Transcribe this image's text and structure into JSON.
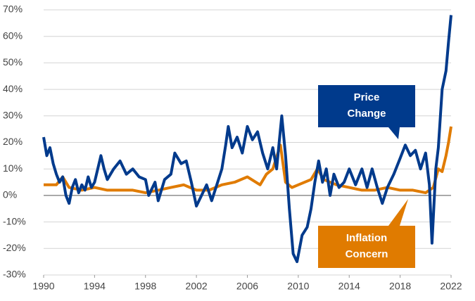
{
  "chart_data": {
    "type": "line",
    "xlim": [
      1990,
      2022
    ],
    "xticks": [
      1990,
      1994,
      1998,
      2002,
      2006,
      2010,
      2014,
      2018,
      2022
    ],
    "ylim": [
      -30,
      70
    ],
    "yticks": [
      {
        "value": -30,
        "label": "-30%"
      },
      {
        "value": -20,
        "label": "-20%"
      },
      {
        "value": -10,
        "label": "-10%"
      },
      {
        "value": 0,
        "label": "0%"
      },
      {
        "value": 10,
        "label": "10%"
      },
      {
        "value": 20,
        "label": "20%"
      },
      {
        "value": 30,
        "label": "30%"
      },
      {
        "value": 40,
        "label": "40%"
      },
      {
        "value": 50,
        "label": "50%"
      },
      {
        "value": 60,
        "label": "60%"
      },
      {
        "value": 70,
        "label": "70%"
      }
    ],
    "grid": true,
    "series": [
      {
        "name": "Inflation Concern",
        "color": "#e07b00",
        "x": [
          1990,
          1991,
          1991.5,
          1992,
          1993,
          1994,
          1995,
          1996,
          1997,
          1998,
          1999,
          2000,
          2001,
          2002,
          2003,
          2004,
          2005,
          2006,
          2007,
          2007.5,
          2008,
          2008.6,
          2009,
          2009.5,
          2010,
          2011,
          2011.5,
          2012,
          2013,
          2014,
          2015,
          2016,
          2017,
          2018,
          2019,
          2020,
          2020.6,
          2021,
          2021.3,
          2021.6,
          2021.8,
          2022
        ],
        "values": [
          4,
          4,
          7,
          3,
          2,
          3,
          2,
          2,
          2,
          1,
          2,
          3,
          4,
          2,
          2,
          4,
          5,
          7,
          4,
          8,
          10,
          19,
          5,
          3,
          4,
          6,
          10,
          6,
          4,
          3,
          2,
          2,
          3,
          2,
          2,
          1,
          3,
          10,
          9,
          15,
          20,
          26
        ]
      },
      {
        "name": "Price Change",
        "color": "#003a8c",
        "x": [
          1990,
          1990.25,
          1990.5,
          1990.75,
          1991,
          1991.25,
          1991.5,
          1991.75,
          1992,
          1992.25,
          1992.5,
          1992.75,
          1993,
          1993.25,
          1993.5,
          1993.75,
          1994,
          1994.5,
          1994.75,
          1995,
          1995.5,
          1996,
          1996.5,
          1997,
          1997.5,
          1998,
          1998.25,
          1998.75,
          1999,
          1999.5,
          2000,
          2000.3,
          2000.8,
          2001.2,
          2001.6,
          2002,
          2002.4,
          2002.8,
          2003.2,
          2003.6,
          2004,
          2004.3,
          2004.5,
          2004.8,
          2005.2,
          2005.6,
          2006,
          2006.4,
          2006.8,
          2007.2,
          2007.6,
          2008,
          2008.3,
          2008.5,
          2008.7,
          2009,
          2009.3,
          2009.6,
          2009.9,
          2010.3,
          2010.7,
          2011,
          2011.3,
          2011.6,
          2011.9,
          2012.2,
          2012.5,
          2012.8,
          2013.2,
          2013.6,
          2014,
          2014.5,
          2015,
          2015.4,
          2015.8,
          2016.2,
          2016.6,
          2017,
          2017.5,
          2018,
          2018.4,
          2018.8,
          2019.2,
          2019.6,
          2020,
          2020.3,
          2020.5,
          2020.8,
          2021,
          2021.3,
          2021.6,
          2021.8,
          2022
        ],
        "values": [
          22,
          15,
          18,
          12,
          8,
          5,
          7,
          0,
          -3,
          3,
          6,
          1,
          4,
          2,
          7,
          3,
          5,
          15,
          10,
          6,
          10,
          13,
          8,
          10,
          7,
          6,
          0,
          5,
          -2,
          6,
          8,
          16,
          12,
          13,
          5,
          -4,
          0,
          4,
          -2,
          4,
          10,
          19,
          26,
          18,
          22,
          16,
          26,
          21,
          24,
          16,
          10,
          18,
          10,
          20,
          30,
          15,
          -5,
          -22,
          -25,
          -15,
          -12,
          -5,
          5,
          13,
          5,
          10,
          0,
          8,
          3,
          5,
          10,
          4,
          10,
          3,
          10,
          3,
          -3,
          3,
          8,
          14,
          19,
          15,
          17,
          10,
          16,
          4,
          -18,
          10,
          18,
          40,
          47,
          58,
          68
        ]
      }
    ],
    "annotations": [
      {
        "lines": [
          "Price",
          "Change"
        ],
        "series": 1
      },
      {
        "lines": [
          "Inflation",
          "Concern"
        ],
        "series": 0
      }
    ]
  }
}
